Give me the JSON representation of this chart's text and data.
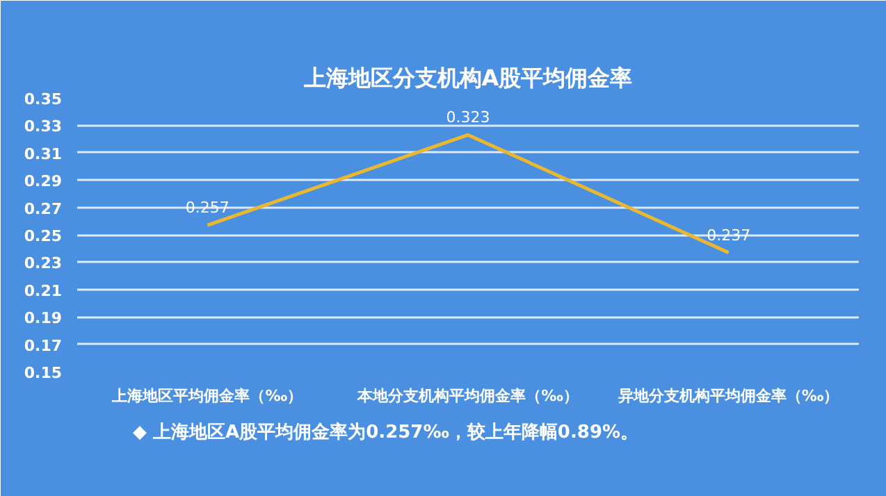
{
  "chart_data": {
    "type": "line",
    "title": "上海地区分支机构A股平均佣金率",
    "categories": [
      "上海地区平均佣金率（‰）",
      "本地分支机构平均佣金率（‰）",
      "异地分支机构平均佣金率（‰）"
    ],
    "series": [
      {
        "color": "#e8b830",
        "values": [
          0.257,
          0.323,
          0.237
        ]
      }
    ],
    "ylim": [
      0.15,
      0.35
    ],
    "yticks": [
      0.15,
      0.17,
      0.19,
      0.21,
      0.23,
      0.25,
      0.27,
      0.29,
      0.31,
      0.33,
      0.35
    ],
    "grid": "y",
    "data_labels": true,
    "marker": "none",
    "annotations": [
      "◆ 上海地区A股平均佣金率为0.257‰，较上年降幅0.89%。"
    ]
  }
}
